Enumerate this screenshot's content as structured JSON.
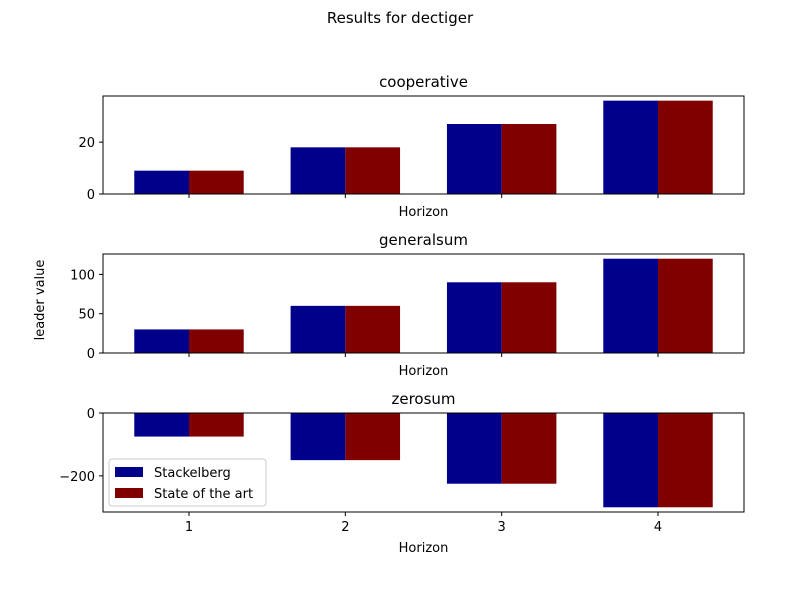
{
  "chart_data": {
    "type": "bar",
    "title": "Results for dectiger",
    "ylabel": "leader value",
    "categories": [
      "1",
      "2",
      "3",
      "4"
    ],
    "series_names": [
      "Stackelberg",
      "State of the art"
    ],
    "colors": {
      "Stackelberg": "#00008b",
      "State of the art": "#800000"
    },
    "legend": {
      "entries": [
        "Stackelberg",
        "State of the art"
      ],
      "placement": "lower-left",
      "panel": "zerosum"
    },
    "panels": [
      {
        "title": "cooperative",
        "xlabel": "Horizon",
        "ylim": [
          0,
          37.8
        ],
        "yticks": [
          "0",
          "20"
        ],
        "ytick_values": [
          0,
          20
        ],
        "show_xtick_labels": false,
        "series": [
          {
            "name": "Stackelberg",
            "values": [
              9,
              18,
              27,
              36
            ]
          },
          {
            "name": "State of the art",
            "values": [
              9,
              18,
              27,
              36
            ]
          }
        ]
      },
      {
        "title": "generalsum",
        "xlabel": "Horizon",
        "ylim": [
          0,
          126
        ],
        "yticks": [
          "0",
          "50",
          "100"
        ],
        "ytick_values": [
          0,
          50,
          100
        ],
        "show_xtick_labels": false,
        "series": [
          {
            "name": "Stackelberg",
            "values": [
              30,
              60,
              90,
              120
            ]
          },
          {
            "name": "State of the art",
            "values": [
              30,
              60,
              90,
              120
            ]
          }
        ]
      },
      {
        "title": "zerosum",
        "xlabel": "Horizon",
        "ylim": [
          -315,
          0
        ],
        "yticks": [
          "−200",
          "0"
        ],
        "ytick_values": [
          -200,
          0
        ],
        "show_xtick_labels": true,
        "series": [
          {
            "name": "Stackelberg",
            "values": [
              -75,
              -150,
              -225,
              -300
            ]
          },
          {
            "name": "State of the art",
            "values": [
              -75,
              -150,
              -225,
              -300
            ]
          }
        ]
      }
    ]
  }
}
